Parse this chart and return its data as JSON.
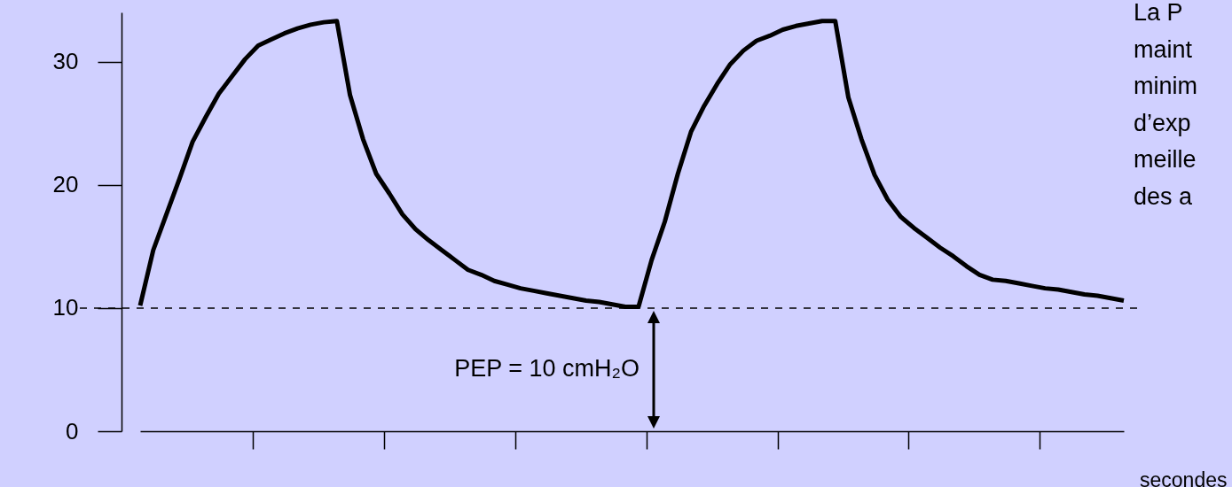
{
  "chart_data": {
    "type": "line",
    "xlabel": "secondes",
    "categories": [
      null,
      null,
      null,
      null,
      null,
      null,
      null,
      null,
      null,
      null,
      null,
      null,
      null,
      null,
      null,
      null,
      null,
      null,
      null,
      null,
      null,
      null,
      null,
      null,
      null,
      null,
      null,
      null,
      null,
      null,
      null,
      null,
      null,
      null,
      null,
      null,
      null,
      null,
      null,
      null,
      null,
      null,
      null,
      null,
      null,
      null,
      null,
      null,
      null,
      null,
      null,
      null,
      null,
      null,
      null,
      null,
      null,
      null,
      null,
      null,
      null,
      null,
      null,
      null,
      null,
      null,
      null,
      null,
      null,
      null,
      null,
      null,
      null,
      null,
      null,
      null
    ],
    "series": [
      {
        "color": "#000000",
        "values": [
          10.2,
          14.7,
          17.6,
          20.5,
          23.5,
          25.5,
          27.4,
          28.8,
          30.2,
          31.3,
          31.8,
          32.3,
          32.7,
          33.0,
          33.2,
          33.3,
          27.3,
          23.7,
          20.9,
          19.3,
          17.6,
          16.4,
          15.5,
          14.7,
          13.9,
          13.1,
          12.7,
          12.2,
          11.9,
          11.6,
          11.4,
          11.2,
          11.0,
          10.8,
          10.6,
          10.5,
          10.3,
          10.1,
          10.1,
          13.9,
          17.0,
          20.9,
          24.3,
          26.4,
          28.2,
          29.8,
          30.9,
          31.7,
          32.1,
          32.6,
          32.9,
          33.1,
          33.3,
          33.3,
          27.1,
          23.7,
          20.8,
          18.8,
          17.4,
          16.5,
          15.7,
          14.9,
          14.2,
          13.4,
          12.7,
          12.3,
          12.2,
          12.0,
          11.8,
          11.6,
          11.5,
          11.3,
          11.1,
          11.0,
          10.8,
          10.6
        ]
      }
    ],
    "ylim": [
      0,
      34
    ],
    "yticks": [
      0,
      10,
      20,
      30
    ],
    "tick_labels": "y",
    "ref_lines": [
      {
        "axis": "y",
        "value": 10,
        "color": "#000000",
        "line_style": "dashed"
      }
    ],
    "annotations": [
      "PEP = 10 cmH₂O",
      "La P\nmaint\nminim\nd’exp\nmeille\ndes a"
    ]
  }
}
